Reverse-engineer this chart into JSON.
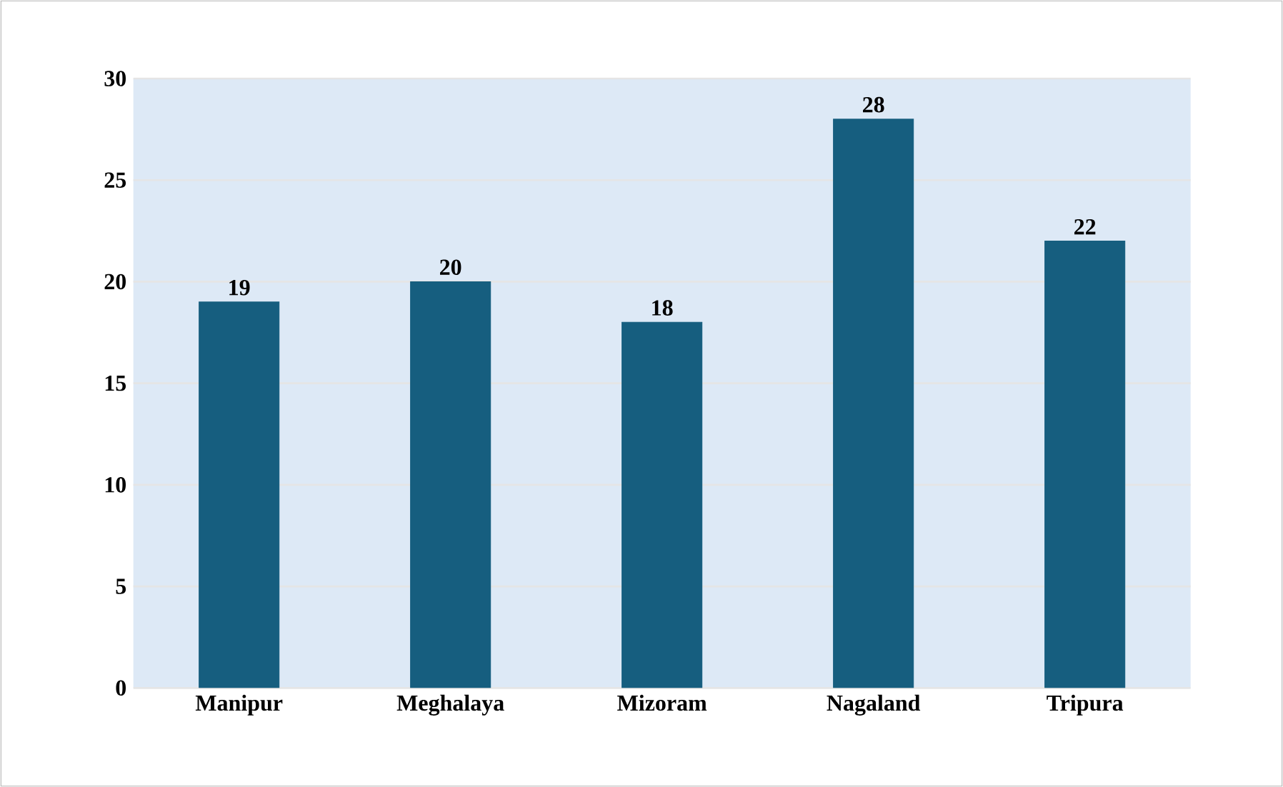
{
  "chart_data": {
    "type": "bar",
    "categories": [
      "Manipur",
      "Meghalaya",
      "Mizoram",
      "Nagaland",
      "Tripura"
    ],
    "values": [
      19,
      20,
      18,
      28,
      22
    ],
    "color": "#165e7f",
    "ylim": [
      0,
      30
    ],
    "yticks": [
      0,
      5,
      10,
      15,
      20,
      25,
      30
    ],
    "grid": "y",
    "data_labels": true
  }
}
